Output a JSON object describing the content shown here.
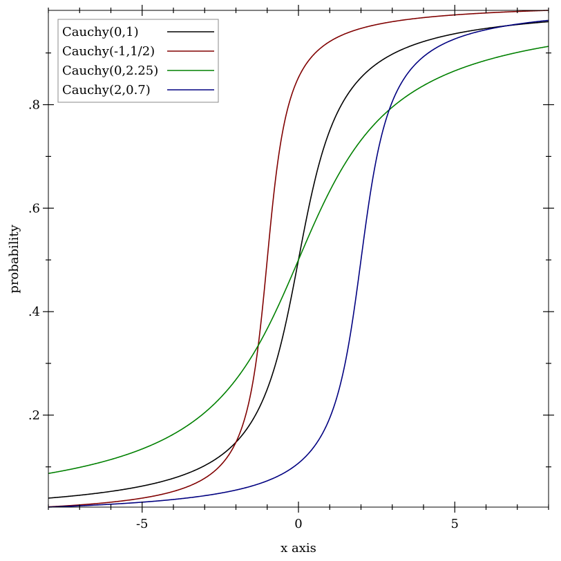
{
  "chart_data": {
    "type": "line",
    "title": "",
    "xlabel": "x axis",
    "ylabel": "probability",
    "xlim": [
      -8,
      8
    ],
    "ylim": [
      0.0222,
      0.9823
    ],
    "grid": false,
    "legend_position": "top-left",
    "x_ticks": [
      {
        "value": -5,
        "label": "-5"
      },
      {
        "value": 0,
        "label": "0"
      },
      {
        "value": 5,
        "label": "5"
      }
    ],
    "x_minor_step": 1,
    "y_ticks": [
      {
        "value": 0.2,
        "label": ".2"
      },
      {
        "value": 0.4,
        "label": ".4"
      },
      {
        "value": 0.6,
        "label": ".6"
      },
      {
        "value": 0.8,
        "label": ".8"
      }
    ],
    "y_minor_ticks": [
      0.1,
      0.3,
      0.5,
      0.7,
      0.9
    ],
    "function": "cauchy_cdf",
    "series": [
      {
        "name": "Cauchy(0,1)",
        "location": 0,
        "scale": 1,
        "color": "#000000"
      },
      {
        "name": "Cauchy(-1,1/2)",
        "location": -1,
        "scale": 0.5,
        "color": "#800000"
      },
      {
        "name": "Cauchy(0,2.25)",
        "location": 0,
        "scale": 2.25,
        "color": "#008000"
      },
      {
        "name": "Cauchy(2,0.7)",
        "location": 2,
        "scale": 0.7,
        "color": "#000080"
      }
    ]
  }
}
